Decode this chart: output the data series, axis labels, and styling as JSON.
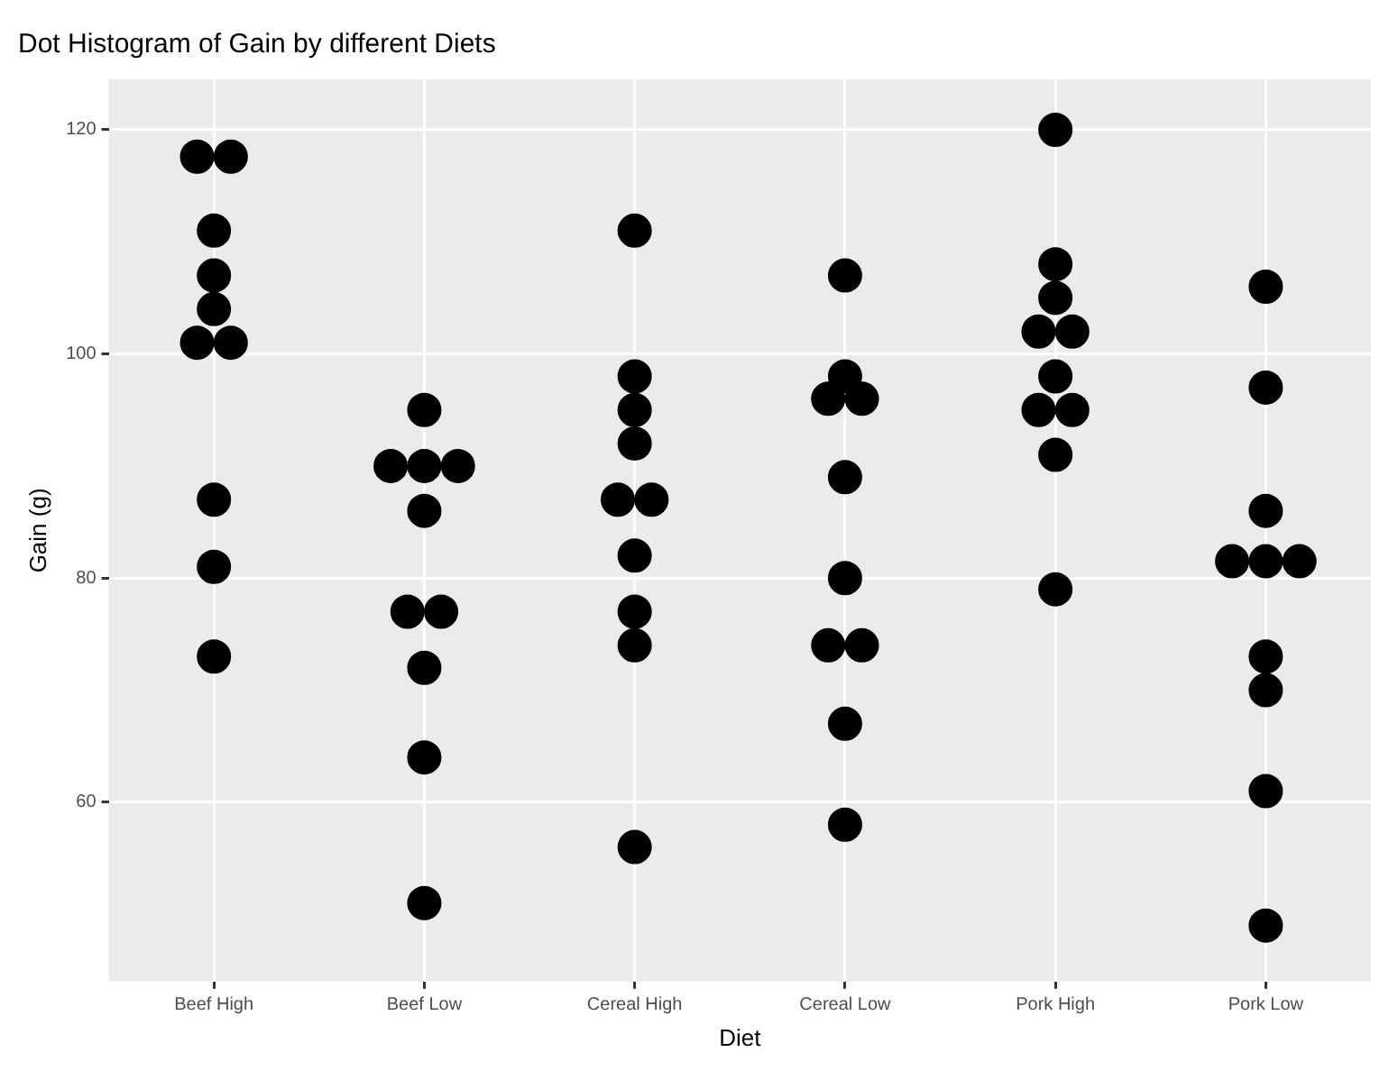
{
  "chart_data": {
    "type": "scatter",
    "title": "Dot Histogram of Gain by different Diets",
    "xlabel": "Diet",
    "ylabel": "Gain (g)",
    "categories": [
      "Beef High",
      "Beef Low",
      "Cereal High",
      "Cereal Low",
      "Pork High",
      "Pork Low"
    ],
    "series": [
      {
        "color": "#000000",
        "x": [
          "Beef High",
          "Beef High",
          "Beef High",
          "Beef High",
          "Beef High",
          "Beef High",
          "Beef High",
          "Beef High",
          "Beef High",
          "Beef High",
          "Beef Low",
          "Beef Low",
          "Beef Low",
          "Beef Low",
          "Beef Low",
          "Beef Low",
          "Beef Low",
          "Beef Low",
          "Beef Low",
          "Beef Low",
          "Cereal High",
          "Cereal High",
          "Cereal High",
          "Cereal High",
          "Cereal High",
          "Cereal High",
          "Cereal High",
          "Cereal High",
          "Cereal High",
          "Cereal High",
          "Cereal Low",
          "Cereal Low",
          "Cereal Low",
          "Cereal Low",
          "Cereal Low",
          "Cereal Low",
          "Cereal Low",
          "Cereal Low",
          "Cereal Low",
          "Cereal Low",
          "Pork High",
          "Pork High",
          "Pork High",
          "Pork High",
          "Pork High",
          "Pork High",
          "Pork High",
          "Pork High",
          "Pork High",
          "Pork High",
          "Pork Low",
          "Pork Low",
          "Pork Low",
          "Pork Low",
          "Pork Low",
          "Pork Low",
          "Pork Low",
          "Pork Low",
          "Pork Low",
          "Pork Low"
        ],
        "values": [
          117.6,
          117.6,
          111,
          107,
          104,
          101,
          101,
          87,
          81,
          73,
          95,
          90,
          90,
          90,
          86,
          77,
          77,
          72,
          64,
          51,
          111,
          98,
          95,
          92,
          87,
          87,
          82,
          77,
          74,
          56,
          107,
          98,
          96,
          96,
          89,
          80,
          74,
          74,
          67,
          58,
          120,
          108,
          105,
          102,
          102,
          98,
          95,
          95,
          91,
          79,
          106,
          97,
          86,
          81.5,
          81.5,
          81.5,
          73,
          70,
          61,
          49
        ]
      }
    ],
    "ylim": [
      44,
      124.5
    ],
    "yticks": [
      60,
      80,
      100,
      120
    ],
    "grid": true,
    "marker": "circle",
    "legend": false
  }
}
